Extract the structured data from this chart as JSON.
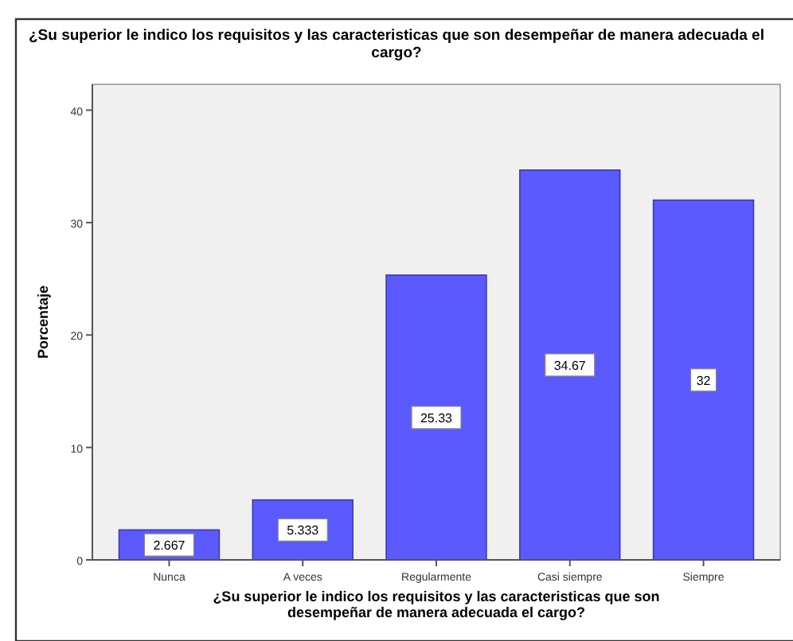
{
  "chart_data": {
    "type": "bar",
    "title": "¿Su superior le indico los requisitos y las caracteristicas que son desempeñar de manera adecuada el cargo?",
    "xlabel": "¿Su superior le indico los requisitos y las caracteristicas que son desempeñar de manera adecuada el cargo?",
    "ylabel": "Porcentaje",
    "categories": [
      "Nunca",
      "A veces",
      "Regularmente",
      "Casi siempre",
      "Siempre"
    ],
    "values": [
      2.667,
      5.333,
      25.33,
      34.67,
      32
    ],
    "value_labels": [
      "2.667",
      "5.333",
      "25.33",
      "34.67",
      "32"
    ],
    "color": "#5a5aff",
    "ylim": [
      0,
      42.3
    ],
    "yticks": [
      0,
      10,
      20,
      30,
      40
    ],
    "grid": false
  }
}
